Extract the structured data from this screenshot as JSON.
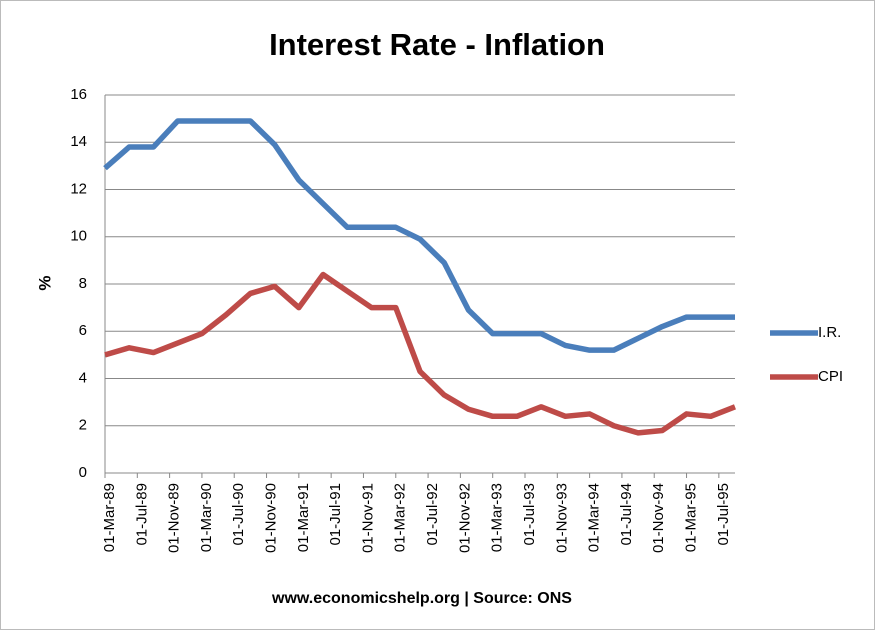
{
  "chart_data": {
    "type": "line",
    "title": "Interest Rate - Inflation",
    "y_label": "%",
    "source": "www.economicshelp.org | Source: ONS",
    "x": [
      "1989-03",
      "1989-06",
      "1989-09",
      "1989-12",
      "1990-03",
      "1990-06",
      "1990-09",
      "1990-12",
      "1991-03",
      "1991-06",
      "1991-09",
      "1991-12",
      "1992-03",
      "1992-06",
      "1992-09",
      "1992-12",
      "1993-03",
      "1993-06",
      "1993-09",
      "1993-12",
      "1994-03",
      "1994-06",
      "1994-09",
      "1994-12",
      "1995-03",
      "1995-06",
      "1995-09"
    ],
    "xlim": [
      "1989-03",
      "1995-09"
    ],
    "xticks": [
      {
        "value": "1989-03",
        "label": "01-Mar-89"
      },
      {
        "value": "1989-07",
        "label": "01-Jul-89"
      },
      {
        "value": "1989-11",
        "label": "01-Nov-89"
      },
      {
        "value": "1990-03",
        "label": "01-Mar-90"
      },
      {
        "value": "1990-07",
        "label": "01-Jul-90"
      },
      {
        "value": "1990-11",
        "label": "01-Nov-90"
      },
      {
        "value": "1991-03",
        "label": "01-Mar-91"
      },
      {
        "value": "1991-07",
        "label": "01-Jul-91"
      },
      {
        "value": "1991-11",
        "label": "01-Nov-91"
      },
      {
        "value": "1992-03",
        "label": "01-Mar-92"
      },
      {
        "value": "1992-07",
        "label": "01-Jul-92"
      },
      {
        "value": "1992-11",
        "label": "01-Nov-92"
      },
      {
        "value": "1993-03",
        "label": "01-Mar-93"
      },
      {
        "value": "1993-07",
        "label": "01-Jul-93"
      },
      {
        "value": "1993-11",
        "label": "01-Nov-93"
      },
      {
        "value": "1994-03",
        "label": "01-Mar-94"
      },
      {
        "value": "1994-07",
        "label": "01-Jul-94"
      },
      {
        "value": "1994-11",
        "label": "01-Nov-94"
      },
      {
        "value": "1995-03",
        "label": "01-Mar-95"
      },
      {
        "value": "1995-07",
        "label": "01-Jul-95"
      }
    ],
    "ylim": [
      0,
      16
    ],
    "yticks": [
      0,
      2,
      4,
      6,
      8,
      10,
      12,
      14,
      16
    ],
    "grid": true,
    "legend": "right",
    "series": [
      {
        "name": "I.R.",
        "color": "#4a7ebb",
        "values": [
          12.9,
          13.8,
          13.8,
          14.9,
          14.9,
          14.9,
          14.9,
          13.9,
          12.4,
          11.4,
          10.4,
          10.4,
          10.4,
          9.9,
          8.9,
          6.9,
          5.9,
          5.9,
          5.9,
          5.4,
          5.2,
          5.2,
          5.7,
          6.2,
          6.6,
          6.6,
          6.6
        ]
      },
      {
        "name": "CPI",
        "color": "#be4b48",
        "values": [
          5.0,
          5.3,
          5.1,
          5.5,
          5.9,
          6.7,
          7.6,
          7.9,
          7.0,
          8.4,
          7.7,
          7.0,
          7.0,
          4.3,
          3.3,
          2.7,
          2.4,
          2.4,
          2.8,
          2.4,
          2.5,
          2.0,
          1.7,
          1.8,
          2.5,
          2.4,
          2.8
        ]
      }
    ]
  }
}
